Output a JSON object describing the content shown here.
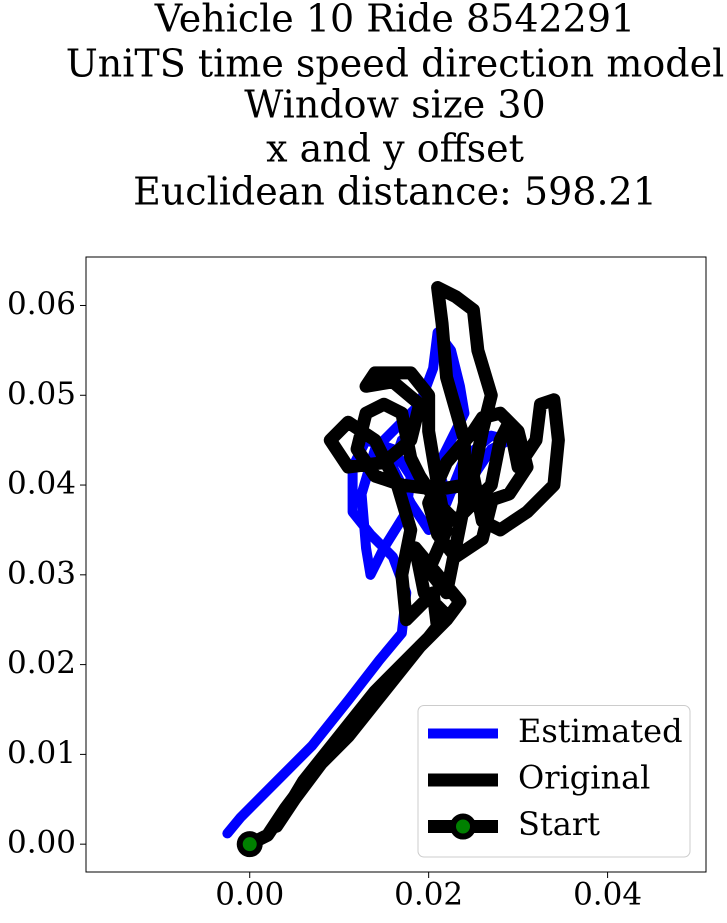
{
  "chart_data": {
    "type": "line",
    "title": [
      "Vehicle 10 Ride 8542291",
      "UniTS time speed direction model",
      "Window size 30",
      "x and y offset",
      "Euclidean distance: 598.21"
    ],
    "xlim": [
      -0.0183,
      0.051
    ],
    "ylim": [
      -0.0031,
      0.0654
    ],
    "xticks": [
      {
        "value": 0,
        "label": "0.00"
      },
      {
        "value": 0.02,
        "label": "0.02"
      },
      {
        "value": 0.04,
        "label": "0.04"
      }
    ],
    "yticks": [
      {
        "value": 0,
        "label": "0.00"
      },
      {
        "value": 0.01,
        "label": "0.01"
      },
      {
        "value": 0.02,
        "label": "0.02"
      },
      {
        "value": 0.03,
        "label": "0.03"
      },
      {
        "value": 0.04,
        "label": "0.04"
      },
      {
        "value": 0.05,
        "label": "0.05"
      },
      {
        "value": 0.06,
        "label": "0.06"
      }
    ],
    "legend": "lower right",
    "series": [
      {
        "name": "Estimated",
        "color": "#0000ff",
        "x": [
          -0.0025,
          -0.001,
          0.003,
          0.007,
          0.011,
          0.0145,
          0.017,
          0.0175,
          0.016,
          0.0135,
          0.0115,
          0.0115,
          0.013,
          0.016,
          0.018,
          0.0175,
          0.015,
          0.0135,
          0.013,
          0.0125,
          0.014,
          0.017,
          0.019,
          0.0205,
          0.021,
          0.0225,
          0.0235,
          0.024,
          0.0225,
          0.021,
          0.022,
          0.025,
          0.027,
          0.029,
          0.027,
          0.024,
          0.022,
          0.02,
          0.018,
          0.016,
          0.017
        ],
        "y": [
          0.0012,
          0.003,
          0.007,
          0.011,
          0.016,
          0.0205,
          0.0235,
          0.028,
          0.032,
          0.0345,
          0.037,
          0.042,
          0.045,
          0.044,
          0.041,
          0.037,
          0.033,
          0.03,
          0.033,
          0.039,
          0.044,
          0.047,
          0.049,
          0.053,
          0.057,
          0.055,
          0.051,
          0.048,
          0.045,
          0.042,
          0.039,
          0.041,
          0.044,
          0.045,
          0.0455,
          0.043,
          0.038,
          0.035,
          0.038,
          0.042,
          0.045
        ]
      },
      {
        "name": "Original",
        "color": "#000000",
        "x": [
          0,
          0.002,
          0.004,
          0.007,
          0.011,
          0.015,
          0.019,
          0.022,
          0.0235,
          0.021,
          0.0185,
          0.0195,
          0.022,
          0.02,
          0.016,
          0.012,
          0.008,
          0.005,
          0.003,
          0.006,
          0.01,
          0.014,
          0.018,
          0.021,
          0.0205,
          0.0175,
          0.017,
          0.018,
          0.0165,
          0.014,
          0.011,
          0.009,
          0.011,
          0.015,
          0.018,
          0.019,
          0.016,
          0.013,
          0.014,
          0.018,
          0.02,
          0.02,
          0.021,
          0.022,
          0.02,
          0.022,
          0.023,
          0.024,
          0.024,
          0.022,
          0.0215,
          0.021,
          0.023,
          0.025,
          0.0255,
          0.027,
          0.026,
          0.025,
          0.026,
          0.028,
          0.031,
          0.034,
          0.0345,
          0.034,
          0.0325,
          0.032,
          0.03,
          0.029,
          0.028,
          0.027,
          0.025,
          0.023,
          0.021,
          0.019,
          0.018,
          0.017,
          0.015,
          0.013,
          0.012,
          0.014,
          0.017,
          0.021,
          0.024,
          0.027,
          0.026,
          0.023,
          0.021,
          0.02,
          0.022,
          0.025,
          0.026,
          0.028,
          0.03,
          0.031,
          0.029,
          0.026
        ],
        "y": [
          0,
          0.001,
          0.004,
          0.008,
          0.012,
          0.017,
          0.022,
          0.025,
          0.027,
          0.03,
          0.033,
          0.028,
          0.0255,
          0.023,
          0.019,
          0.014,
          0.009,
          0.005,
          0.002,
          0.007,
          0.012,
          0.017,
          0.021,
          0.024,
          0.028,
          0.025,
          0.03,
          0.035,
          0.04,
          0.045,
          0.047,
          0.045,
          0.042,
          0.0425,
          0.045,
          0.049,
          0.0515,
          0.051,
          0.0525,
          0.0525,
          0.05,
          0.046,
          0.04,
          0.035,
          0.0305,
          0.028,
          0.033,
          0.038,
          0.045,
          0.052,
          0.058,
          0.062,
          0.061,
          0.0595,
          0.055,
          0.05,
          0.046,
          0.041,
          0.036,
          0.035,
          0.037,
          0.04,
          0.045,
          0.0495,
          0.049,
          0.045,
          0.042,
          0.047,
          0.045,
          0.04,
          0.038,
          0.036,
          0.038,
          0.041,
          0.043,
          0.048,
          0.049,
          0.048,
          0.044,
          0.041,
          0.04,
          0.0395,
          0.04,
          0.038,
          0.034,
          0.032,
          0.0345,
          0.038,
          0.0425,
          0.046,
          0.0475,
          0.048,
          0.046,
          0.042,
          0.039,
          0.038
        ]
      },
      {
        "name": "Start",
        "color": "#000000",
        "marker_color": "#008000",
        "x": [
          0
        ],
        "y": [
          0
        ]
      }
    ]
  }
}
